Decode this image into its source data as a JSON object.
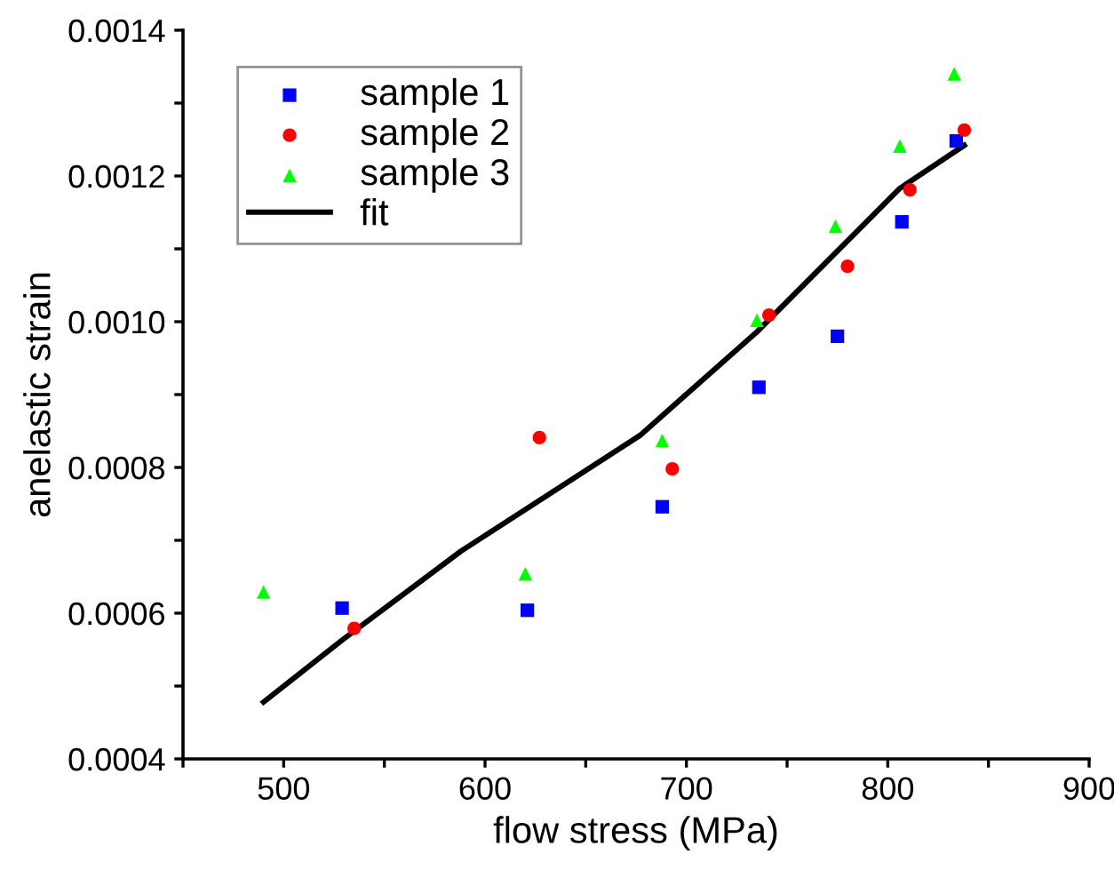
{
  "chart_data": {
    "type": "scatter",
    "xlabel": "flow stress (MPa)",
    "ylabel": "anelastic strain",
    "xlim": [
      450,
      900
    ],
    "ylim": [
      0.0004,
      0.0014
    ],
    "xticks": [
      {
        "value": 450,
        "label": null
      },
      500,
      {
        "value": 550,
        "label": null
      },
      600,
      {
        "value": 650,
        "label": null
      },
      700,
      {
        "value": 750,
        "label": null
      },
      800,
      {
        "value": 850,
        "label": null
      },
      900
    ],
    "yticks": [
      0.0004,
      {
        "value": 0.0005,
        "label": null
      },
      0.0006,
      {
        "value": 0.0007,
        "label": null
      },
      0.0008,
      {
        "value": 0.0009,
        "label": null
      },
      {
        "value": 0.001,
        "label": "0.0010"
      },
      {
        "value": 0.0011,
        "label": null
      },
      0.0012,
      {
        "value": 0.0013,
        "label": null
      },
      0.0014
    ],
    "legend": "top left",
    "grid": false,
    "series": [
      {
        "name": "sample 1",
        "color": "#0000ff",
        "marker": "square",
        "x": [
          529,
          621,
          688,
          736,
          775,
          807,
          834
        ],
        "values": [
          0.000607,
          0.000604,
          0.000746,
          0.00091,
          0.00098,
          0.001137,
          0.001248
        ]
      },
      {
        "name": "sample 2",
        "color": "#ff0000",
        "marker": "circle",
        "x": [
          535,
          627,
          693,
          741,
          780,
          811,
          838
        ],
        "values": [
          0.000579,
          0.000841,
          0.000798,
          0.001009,
          0.001076,
          0.001181,
          0.001263
        ]
      },
      {
        "name": "sample 3",
        "color": "#00ff00",
        "marker": "triangle",
        "x": [
          490,
          620,
          688,
          735,
          774,
          806,
          833
        ],
        "values": [
          0.000629,
          0.000654,
          0.000837,
          0.001002,
          0.001131,
          0.001241,
          0.00134
        ]
      },
      {
        "name": "fit",
        "type": "line",
        "color": "#000000",
        "marker": "none",
        "line_style": "solid",
        "x": [
          490,
          529,
          588,
          677,
          735,
          806,
          838
        ],
        "values": [
          0.000478,
          0.000563,
          0.000685,
          0.000844,
          0.000986,
          0.001183,
          0.001242
        ]
      }
    ]
  }
}
